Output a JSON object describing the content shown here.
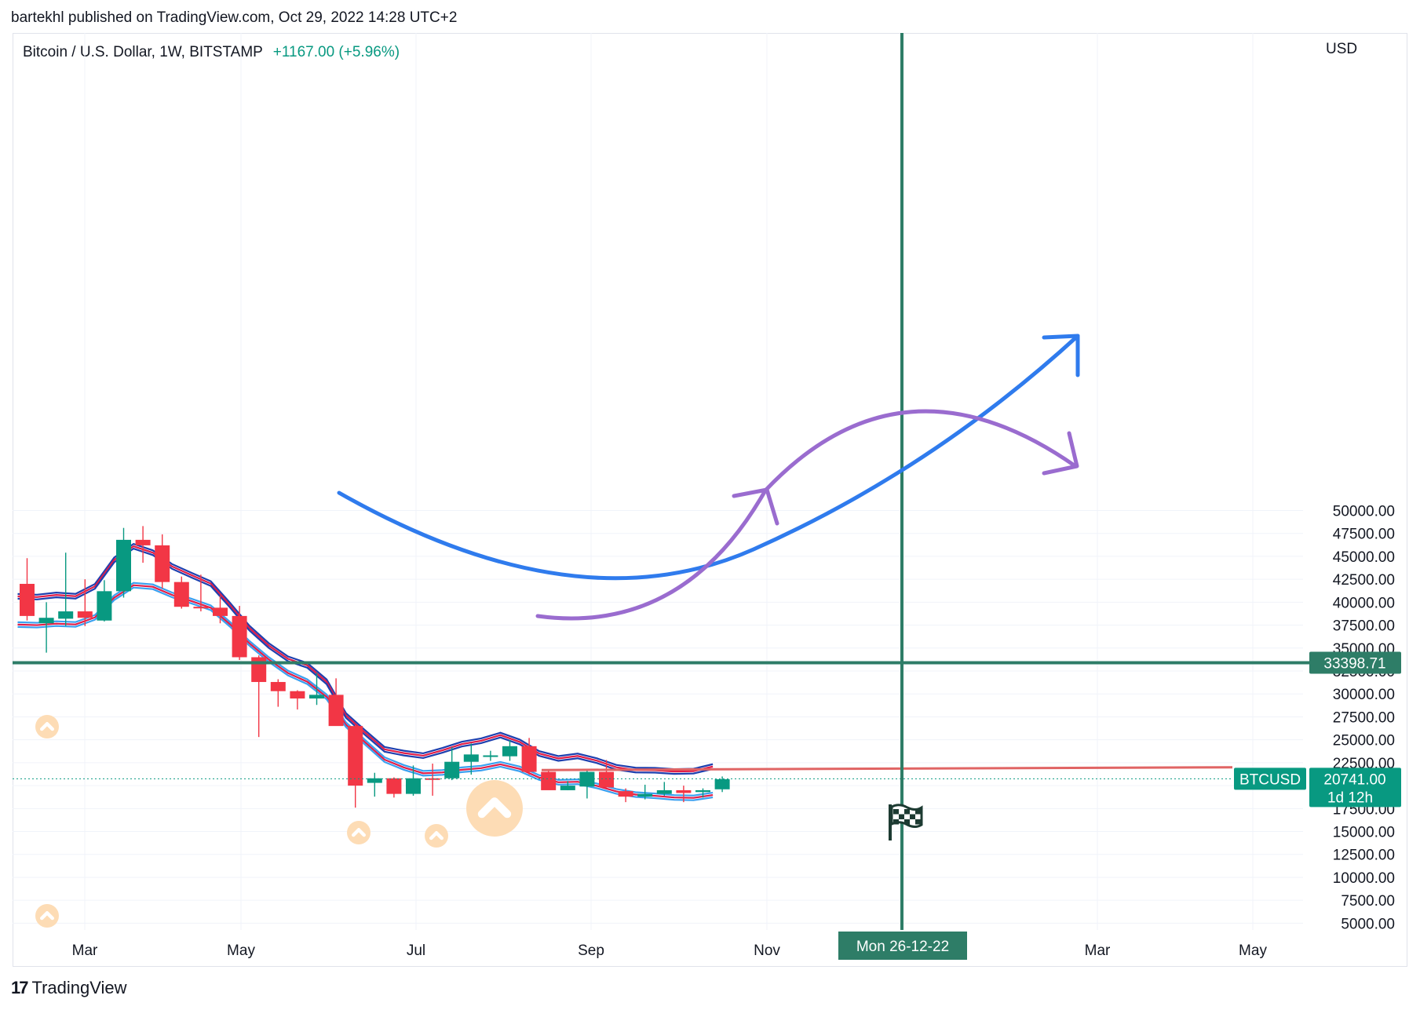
{
  "header": {
    "text": "bartekhl published on TradingView.com, Oct 29, 2022 14:28 UTC+2"
  },
  "symbol": {
    "title": "Bitcoin / U.S. Dollar, 1W, BITSTAMP",
    "change": "+1167.00 (+5.96%)"
  },
  "currency": "USD",
  "footer": {
    "brand": "TradingView",
    "logo": "17"
  },
  "colors": {
    "up": "#089981",
    "down": "#f23645",
    "blue": "#2f7bed",
    "purple": "#9a6ccf",
    "green_line": "#2e7d67",
    "red_line": "#e06464"
  },
  "chart_data": {
    "type": "candlestick",
    "title": "Bitcoin / U.S. Dollar, 1W, BITSTAMP",
    "ylim": [
      4000,
      53000
    ],
    "y_ticks": [
      "50000.00",
      "47500.00",
      "45000.00",
      "42500.00",
      "40000.00",
      "37500.00",
      "35000.00",
      "32500.00",
      "30000.00",
      "27500.00",
      "25000.00",
      "22500.00",
      "20000.00",
      "17500.00",
      "15000.00",
      "12500.00",
      "10000.00",
      "7500.00",
      "5000.00"
    ],
    "x_labels": [
      "Mar",
      "May",
      "Jul",
      "Sep",
      "Nov",
      "Mar",
      "May"
    ],
    "grid": true,
    "candles": [
      {
        "o": 42000,
        "h": 44800,
        "l": 38000,
        "c": 38500
      },
      {
        "o": 37700,
        "h": 40000,
        "l": 34500,
        "c": 38300
      },
      {
        "o": 38200,
        "h": 45400,
        "l": 37400,
        "c": 39000
      },
      {
        "o": 39000,
        "h": 42500,
        "l": 37400,
        "c": 38300
      },
      {
        "o": 38000,
        "h": 42400,
        "l": 37900,
        "c": 41200
      },
      {
        "o": 41200,
        "h": 48100,
        "l": 40500,
        "c": 46800
      },
      {
        "o": 46800,
        "h": 48300,
        "l": 44300,
        "c": 46200
      },
      {
        "o": 46200,
        "h": 47400,
        "l": 41500,
        "c": 42200
      },
      {
        "o": 42200,
        "h": 42800,
        "l": 39300,
        "c": 39500
      },
      {
        "o": 39500,
        "h": 43000,
        "l": 39000,
        "c": 39400
      },
      {
        "o": 39400,
        "h": 40700,
        "l": 37700,
        "c": 38500
      },
      {
        "o": 38500,
        "h": 39600,
        "l": 33700,
        "c": 34000
      },
      {
        "o": 34000,
        "h": 34200,
        "l": 25300,
        "c": 31300
      },
      {
        "o": 31300,
        "h": 31600,
        "l": 28600,
        "c": 30300
      },
      {
        "o": 30300,
        "h": 30400,
        "l": 28300,
        "c": 29500
      },
      {
        "o": 29500,
        "h": 32300,
        "l": 28800,
        "c": 29900
      },
      {
        "o": 29900,
        "h": 31700,
        "l": 26600,
        "c": 26500
      },
      {
        "o": 26500,
        "h": 26600,
        "l": 17600,
        "c": 20000
      },
      {
        "o": 20300,
        "h": 21400,
        "l": 18800,
        "c": 20800
      },
      {
        "o": 20800,
        "h": 20900,
        "l": 18700,
        "c": 19100
      },
      {
        "o": 19100,
        "h": 22200,
        "l": 18900,
        "c": 20800
      },
      {
        "o": 20800,
        "h": 22400,
        "l": 18900,
        "c": 20700
      },
      {
        "o": 20800,
        "h": 24200,
        "l": 20600,
        "c": 22600
      },
      {
        "o": 22600,
        "h": 24600,
        "l": 21200,
        "c": 23400
      },
      {
        "o": 23300,
        "h": 23800,
        "l": 22700,
        "c": 23300
      },
      {
        "o": 23200,
        "h": 25000,
        "l": 22700,
        "c": 24300
      },
      {
        "o": 24300,
        "h": 25200,
        "l": 21200,
        "c": 21500
      },
      {
        "o": 21500,
        "h": 21600,
        "l": 19600,
        "c": 19500
      },
      {
        "o": 19500,
        "h": 20500,
        "l": 19500,
        "c": 20000
      },
      {
        "o": 19900,
        "h": 21800,
        "l": 18600,
        "c": 21500
      },
      {
        "o": 21500,
        "h": 22800,
        "l": 19800,
        "c": 19800
      },
      {
        "o": 19400,
        "h": 19700,
        "l": 18200,
        "c": 18800
      },
      {
        "o": 18800,
        "h": 20100,
        "l": 18500,
        "c": 19100
      },
      {
        "o": 19100,
        "h": 20400,
        "l": 18900,
        "c": 19500
      },
      {
        "o": 19500,
        "h": 20000,
        "l": 18200,
        "c": 19200
      },
      {
        "o": 19300,
        "h": 19700,
        "l": 18700,
        "c": 19500
      },
      {
        "o": 19600,
        "h": 21000,
        "l": 19300,
        "c": 20700
      }
    ],
    "price_lines": [
      {
        "label": "33398.71",
        "value": 33398.71,
        "color": "#2e7d67"
      },
      {
        "label": "BTCUSD",
        "value": 20741,
        "price": "20741.00",
        "countdown": "1d 12h",
        "color": "#089981"
      }
    ],
    "resistance_line": {
      "from": 21700,
      "to": 22000,
      "color": "#e06464"
    },
    "vertical_marker": {
      "label": "Mon 26-12-22",
      "color": "#2e7d67"
    },
    "annotations": {
      "blue_arc": "projected rise",
      "purple_arc": "projected rise and fall"
    }
  }
}
